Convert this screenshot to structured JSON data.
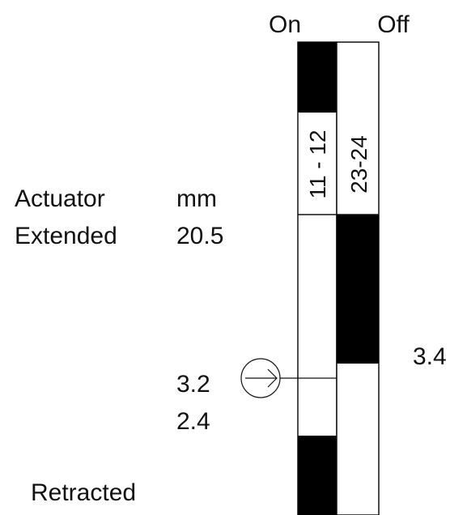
{
  "columns": {
    "on_label": "On",
    "off_label": "Off"
  },
  "contacts": {
    "on": "11 - 12",
    "off": "23-24"
  },
  "actuator": {
    "label_line1": "Actuator",
    "label_line2": "Extended",
    "retracted_label": "Retracted",
    "unit": "mm",
    "extended_value": "20.5"
  },
  "positions": {
    "on_switch_point": "3.2",
    "on_reset_point": "2.4",
    "off_switch_point": "3.4"
  },
  "icons": {
    "arrow_marker": "circled-right-arrow-icon"
  },
  "colors": {
    "ink": "#111111",
    "fill_active": "#000000",
    "background": "#ffffff"
  }
}
